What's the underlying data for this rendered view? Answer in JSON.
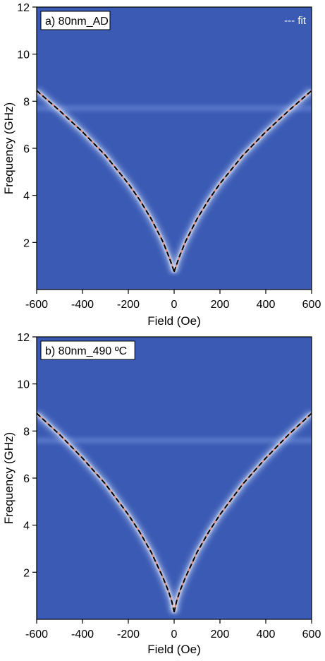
{
  "chart_data": [
    {
      "type": "heatmap",
      "panel_label": "a) 80nm_AD",
      "legend_label": "--- fit",
      "xlabel": "Field (Oe)",
      "ylabel": "Frequency (GHz)",
      "xlim": [
        -600,
        600
      ],
      "ylim": [
        0,
        12
      ],
      "x_ticks": [
        -600,
        -400,
        -200,
        0,
        200,
        400,
        600
      ],
      "y_ticks": [
        2,
        4,
        6,
        8,
        10,
        12
      ],
      "colormap": {
        "background": "#3a5ab4",
        "peak_glow": "#d6e4fa",
        "peak_center": "#d8664a",
        "fit_line": "#000000"
      },
      "fit_curve": {
        "x": [
          -600,
          -500,
          -400,
          -300,
          -200,
          -150,
          -100,
          -50,
          -25,
          -10,
          0,
          10,
          25,
          50,
          100,
          150,
          200,
          300,
          400,
          500,
          600
        ],
        "y": [
          8.45,
          7.6,
          6.7,
          5.7,
          4.5,
          3.8,
          3.0,
          2.05,
          1.45,
          1.05,
          0.75,
          1.05,
          1.45,
          2.05,
          3.0,
          3.8,
          4.5,
          5.7,
          6.7,
          7.6,
          8.45
        ]
      },
      "horizontal_band_ghz": 7.7
    },
    {
      "type": "heatmap",
      "panel_label": "b) 80nm_490 ºC",
      "xlabel": "Field (Oe)",
      "ylabel": "Frequency (GHz)",
      "xlim": [
        -600,
        600
      ],
      "ylim": [
        0,
        12
      ],
      "x_ticks": [
        -600,
        -400,
        -200,
        0,
        200,
        400,
        600
      ],
      "y_ticks": [
        2,
        4,
        6,
        8,
        10,
        12
      ],
      "colormap": {
        "background": "#3a5ab4",
        "peak_glow": "#d6e4fa",
        "peak_center": "#d8664a",
        "fit_line": "#000000"
      },
      "fit_curve": {
        "x": [
          -600,
          -500,
          -400,
          -300,
          -200,
          -150,
          -100,
          -50,
          -25,
          -10,
          0,
          10,
          25,
          50,
          100,
          150,
          200,
          300,
          400,
          500,
          600
        ],
        "y": [
          8.75,
          7.85,
          6.85,
          5.75,
          4.45,
          3.7,
          2.85,
          1.8,
          1.2,
          0.75,
          0.3,
          0.75,
          1.2,
          1.8,
          2.85,
          3.7,
          4.45,
          5.75,
          6.85,
          7.85,
          8.75
        ]
      },
      "horizontal_band_ghz": 7.6
    }
  ]
}
